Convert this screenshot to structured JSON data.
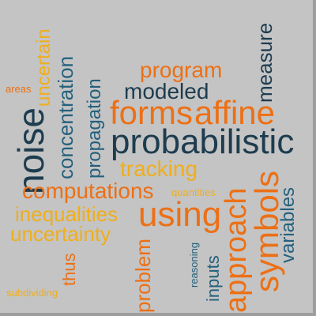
{
  "palette": {
    "background": "#c4c4c4",
    "dark_teal": "#1d3c4f",
    "steel_blue": "#24607c",
    "orange": "#ec7016",
    "gold": "#efae1d"
  },
  "words": {
    "probabilistic": "probabilistic",
    "forms": "forms",
    "affine": "affine",
    "using": "using",
    "noise": "noise",
    "approach": "approach",
    "symbols": "symbols",
    "computations": "computations",
    "modeled": "modeled",
    "program": "program",
    "tracking": "tracking",
    "inequalities": "inequalities",
    "uncertainty": "uncertainty",
    "concentration": "concentration",
    "propagation": "propagation",
    "uncertain": "uncertain",
    "measure": "measure",
    "variables": "variables",
    "problem": "problem",
    "inputs": "inputs",
    "thus": "thus",
    "reasoning": "reasoning",
    "quantities": "quantities",
    "areas": "areas",
    "subdividing": "subdividing"
  }
}
